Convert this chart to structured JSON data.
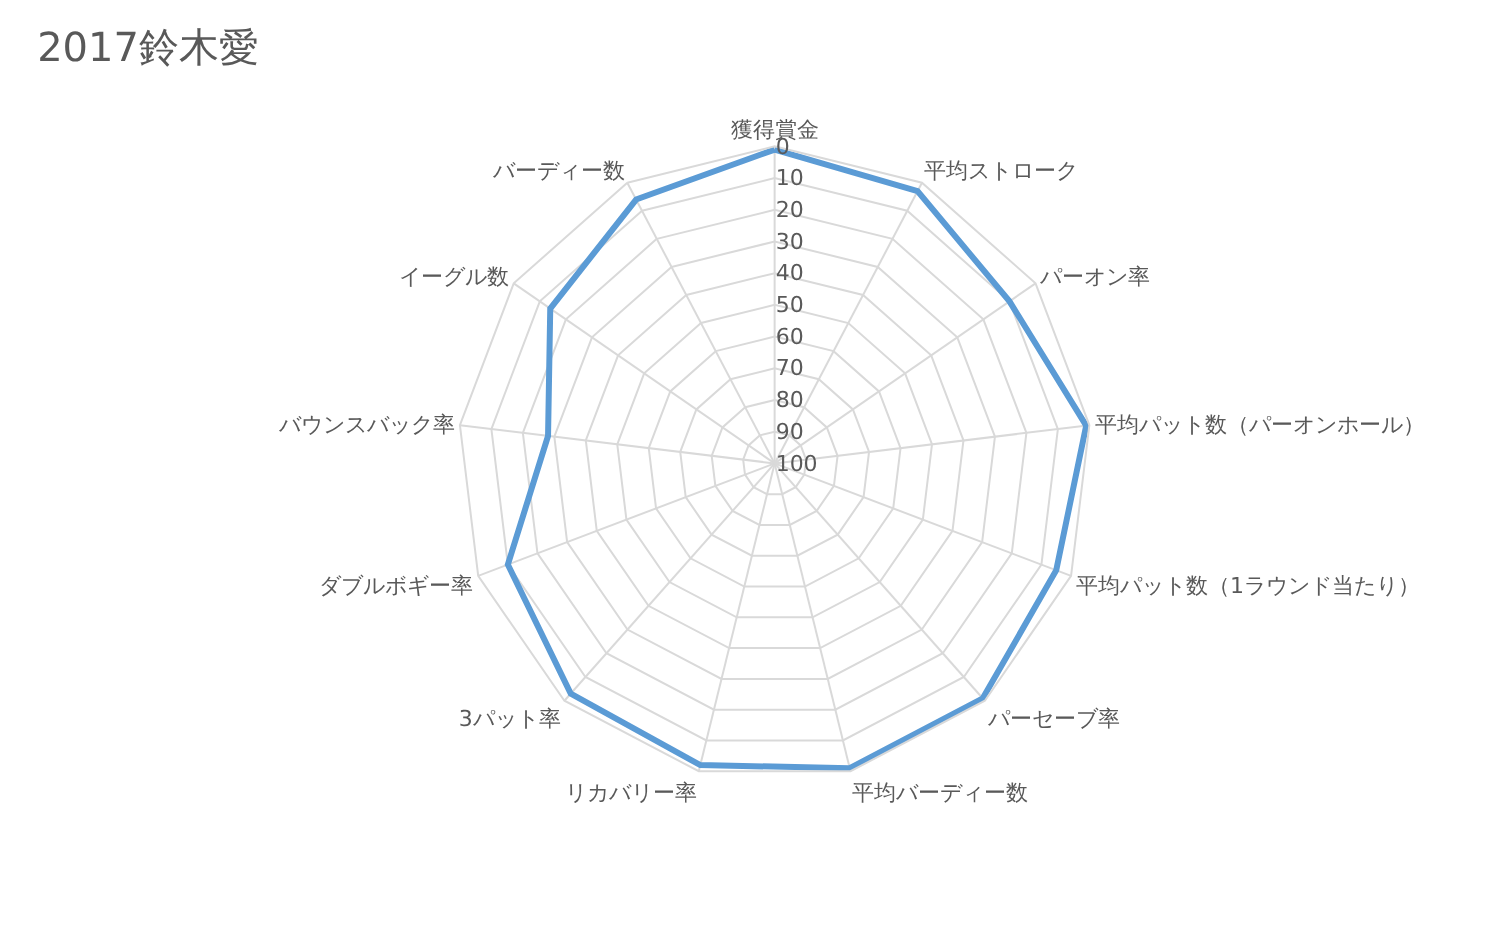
{
  "chart_data": {
    "type": "radar",
    "title": "2017鈴木愛",
    "categories": [
      "獲得賞金",
      "平均ストローク",
      "パーオン率",
      "平均パット数（パーオンホール）",
      "平均パット数（1ラウンド当たり）",
      "パーセーブ率",
      "平均バーディー数",
      "リカバリー率",
      "3パット率",
      "ダブルボギー率",
      "バウンスバック率",
      "イーグル数",
      "バーディー数"
    ],
    "series": [
      {
        "color": "#5b9bd5",
        "values": [
          1,
          3,
          10,
          1,
          5,
          1,
          1,
          2,
          3,
          10,
          28,
          14,
          6
        ]
      }
    ],
    "ylim": [
      100,
      0
    ],
    "yticks": [
      0,
      10,
      20,
      30,
      40,
      50,
      60,
      70,
      80,
      90,
      100
    ],
    "grid": true,
    "marker": "none",
    "line_style": "solid"
  }
}
